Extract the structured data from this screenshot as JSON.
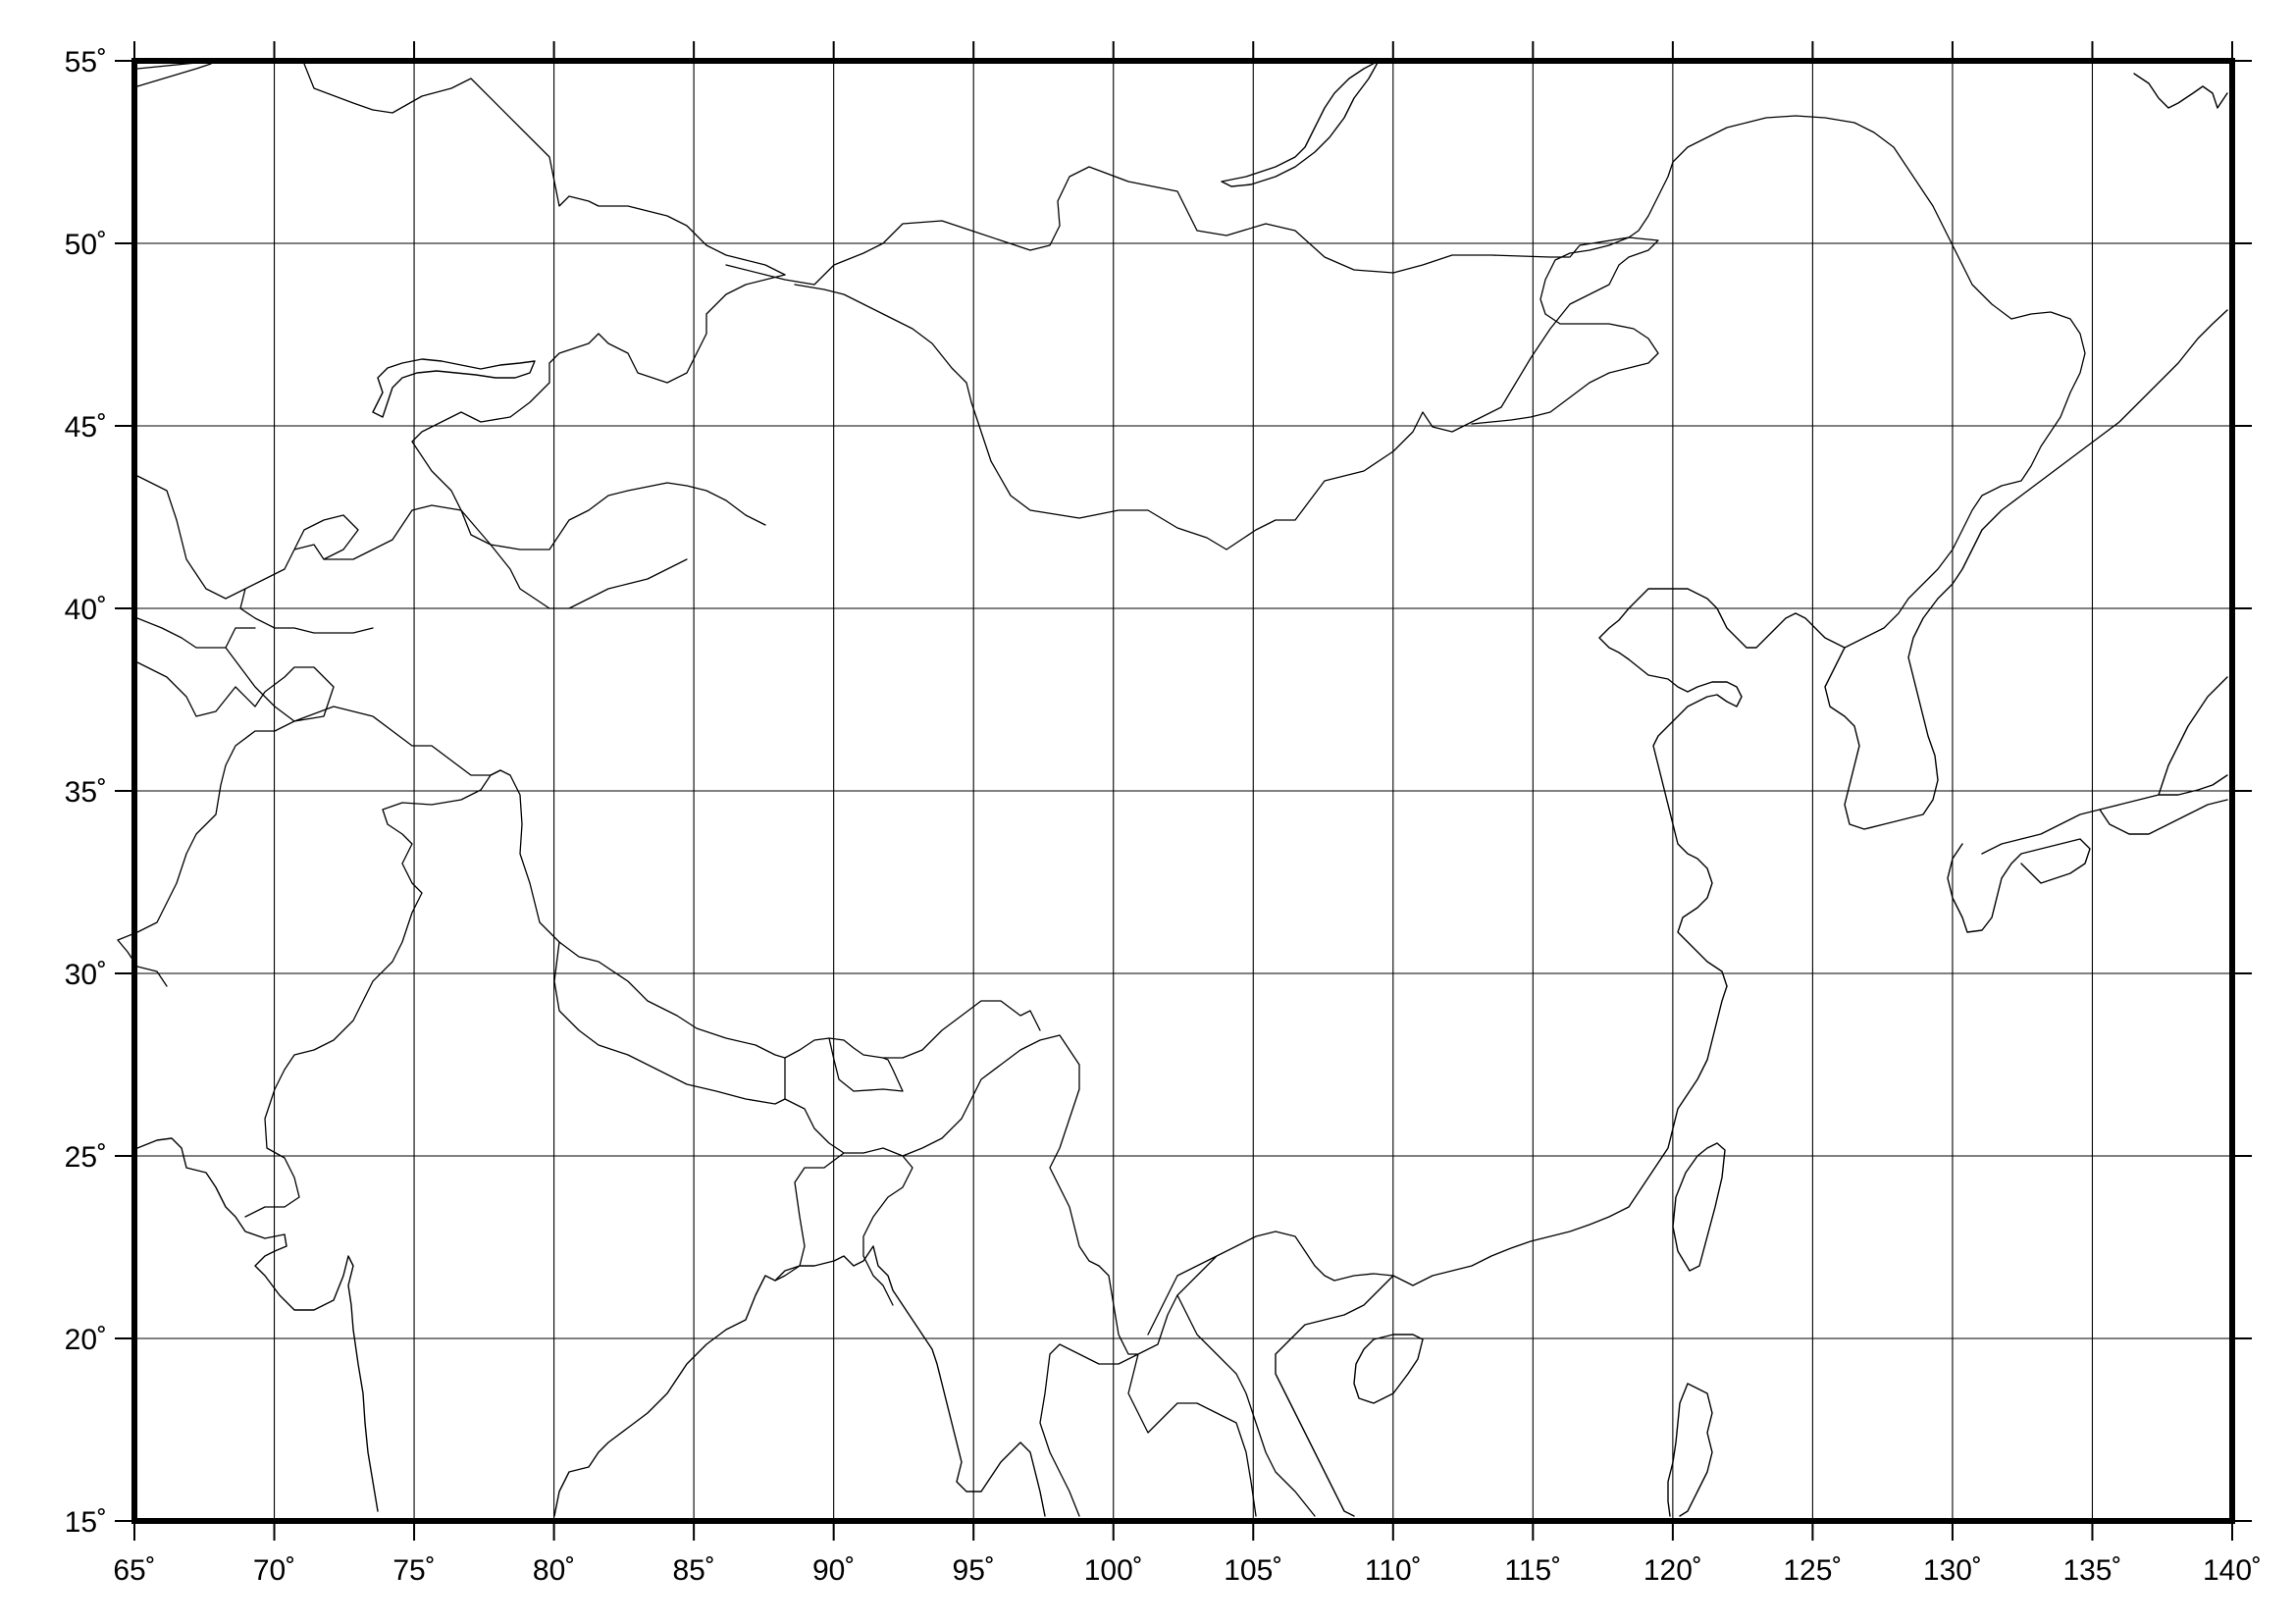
{
  "map": {
    "projection": "linear lon/lat",
    "lon_range": [
      65,
      140
    ],
    "lat_range": [
      15,
      55
    ],
    "grid": true,
    "lon_ticks": [
      65,
      70,
      75,
      80,
      85,
      90,
      95,
      100,
      105,
      110,
      115,
      120,
      125,
      130,
      135,
      140
    ],
    "lat_ticks": [
      15,
      20,
      25,
      30,
      35,
      40,
      45,
      50,
      55
    ],
    "lon_tick_labels": [
      "65˚",
      "70˚",
      "75˚",
      "80˚",
      "85˚",
      "90˚",
      "95˚",
      "100˚",
      "105˚",
      "110˚",
      "115˚",
      "120˚",
      "125˚",
      "130˚",
      "135˚",
      "140˚"
    ],
    "lat_tick_labels": [
      "15˚",
      "20˚",
      "25˚",
      "30˚",
      "35˚",
      "40˚",
      "45˚",
      "50˚",
      "55˚"
    ],
    "features": [
      "country-borders",
      "coastlines"
    ],
    "colors": {
      "line": "#000000",
      "background": "#ffffff"
    }
  }
}
